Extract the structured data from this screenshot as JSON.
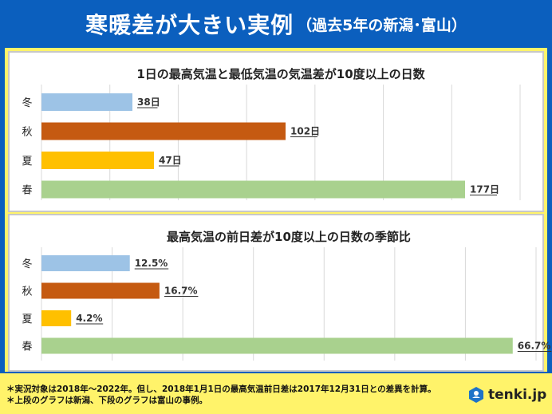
{
  "header": {
    "title_main": "寒暖差が大きい実例",
    "title_sub": "（過去5年の新潟･富山）"
  },
  "chart_data": [
    {
      "type": "bar",
      "orientation": "horizontal",
      "title": "1日の最高気温と最低気温の気温差が10度以上の日数",
      "categories": [
        "冬",
        "秋",
        "夏",
        "春"
      ],
      "values": [
        38,
        102,
        47,
        177
      ],
      "value_labels": [
        "38日",
        "102日",
        "47日",
        "177日"
      ],
      "colors": [
        "#9dc3e6",
        "#c55a11",
        "#ffc000",
        "#a9d18e"
      ],
      "xlim": [
        0,
        200
      ],
      "grid": true
    },
    {
      "type": "bar",
      "orientation": "horizontal",
      "title": "最高気温の前日差が10度以上の日数の季節比",
      "categories": [
        "冬",
        "秋",
        "夏",
        "春"
      ],
      "values": [
        12.5,
        16.7,
        4.2,
        66.7
      ],
      "value_labels": [
        "12.5%",
        "16.7%",
        "4.2%",
        "66.7%"
      ],
      "colors": [
        "#9dc3e6",
        "#c55a11",
        "#ffc000",
        "#a9d18e"
      ],
      "xlim": [
        0,
        70
      ],
      "grid": true
    }
  ],
  "footer": {
    "note1": "＊実況対象は2018年～2022年。但し、2018年1月1日の最高気温前日差は2017年12月31日との差異を計算。",
    "note2": "＊上段のグラフは新潟、下段のグラフは富山の事例。",
    "logo_text": "tenki.jp",
    "logo_icon": "tenki-logo-icon"
  }
}
